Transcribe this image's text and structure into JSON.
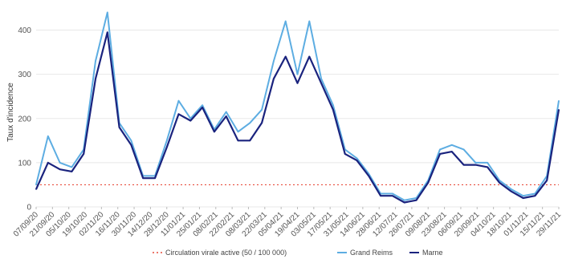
{
  "chart_data": {
    "type": "line",
    "title": "",
    "xlabel": "",
    "ylabel": "Taux d'incidence",
    "ylim": [
      0,
      450
    ],
    "yticks": [
      0,
      100,
      200,
      300,
      400
    ],
    "grid": "horizontal",
    "legend_position": "bottom",
    "x_tick_labels": [
      "07/09/20",
      "21/09/20",
      "05/10/20",
      "19/10/20",
      "02/11/20",
      "16/11/20",
      "30/11/20",
      "14/12/20",
      "28/12/20",
      "11/01/21",
      "25/01/21",
      "08/02/21",
      "22/02/21",
      "08/03/21",
      "22/03/21",
      "05/04/21",
      "19/04/21",
      "03/05/21",
      "17/05/21",
      "31/05/21",
      "14/06/21",
      "28/06/21",
      "12/07/21",
      "26/07/21",
      "09/08/21",
      "23/08/21",
      "06/09/21",
      "20/09/21",
      "04/10/21",
      "18/10/21",
      "01/11/21",
      "15/11/21",
      "29/11/21"
    ],
    "threshold": {
      "name": "Circulation virale active (50 / 100 000)",
      "value": 50,
      "color": "#e74c3c"
    },
    "series": [
      {
        "name": "Grand Reims",
        "color": "#5dade2",
        "values": [
          50,
          160,
          100,
          90,
          130,
          330,
          440,
          190,
          150,
          70,
          70,
          150,
          240,
          200,
          230,
          175,
          215,
          170,
          190,
          220,
          330,
          420,
          300,
          420,
          290,
          230,
          130,
          110,
          75,
          30,
          30,
          15,
          20,
          60,
          130,
          140,
          130,
          100,
          100,
          60,
          40,
          25,
          30,
          70,
          240
        ]
      },
      {
        "name": "Marne",
        "color": "#1a237e",
        "values": [
          40,
          100,
          85,
          80,
          120,
          290,
          395,
          180,
          140,
          65,
          65,
          135,
          210,
          195,
          225,
          170,
          205,
          150,
          150,
          190,
          290,
          340,
          280,
          340,
          280,
          220,
          120,
          105,
          70,
          25,
          25,
          10,
          15,
          55,
          120,
          125,
          95,
          95,
          90,
          55,
          35,
          20,
          25,
          60,
          220
        ]
      }
    ]
  }
}
